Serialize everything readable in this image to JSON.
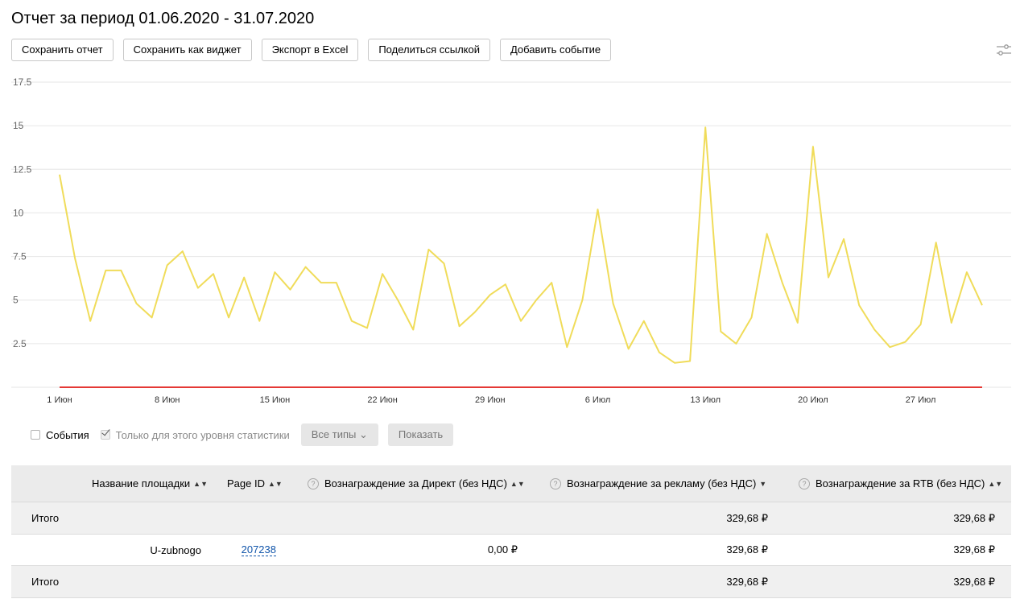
{
  "header": {
    "title": "Отчет за период 01.06.2020 - 31.07.2020"
  },
  "toolbar": {
    "save_report": "Сохранить отчет",
    "save_widget": "Сохранить как виджет",
    "export_excel": "Экспорт в Excel",
    "share_link": "Поделиться ссылкой",
    "add_event": "Добавить событие",
    "settings_icon": "sliders-icon"
  },
  "chart_data": {
    "type": "line",
    "y_ticks": [
      "17.5",
      "15",
      "12.5",
      "10",
      "7.5",
      "5",
      "2.5"
    ],
    "x_tick_labels": [
      "1 Июн",
      "8 Июн",
      "15 Июн",
      "22 Июн",
      "29 Июн",
      "6 Июл",
      "13 Июл",
      "20 Июл",
      "27 Июл"
    ],
    "ylim": [
      0,
      17.5
    ],
    "grid": true,
    "series": [
      {
        "color": "#f0dc5a",
        "x": [
          "2020-06-01",
          "2020-06-02",
          "2020-06-03",
          "2020-06-04",
          "2020-06-05",
          "2020-06-06",
          "2020-06-07",
          "2020-06-08",
          "2020-06-09",
          "2020-06-10",
          "2020-06-11",
          "2020-06-12",
          "2020-06-13",
          "2020-06-14",
          "2020-06-15",
          "2020-06-16",
          "2020-06-17",
          "2020-06-18",
          "2020-06-19",
          "2020-06-20",
          "2020-06-21",
          "2020-06-22",
          "2020-06-23",
          "2020-06-24",
          "2020-06-25",
          "2020-06-26",
          "2020-06-27",
          "2020-06-28",
          "2020-06-29",
          "2020-06-30",
          "2020-07-01",
          "2020-07-02",
          "2020-07-03",
          "2020-07-04",
          "2020-07-05",
          "2020-07-06",
          "2020-07-07",
          "2020-07-08",
          "2020-07-09",
          "2020-07-10",
          "2020-07-11",
          "2020-07-12",
          "2020-07-13",
          "2020-07-14",
          "2020-07-15",
          "2020-07-16",
          "2020-07-17",
          "2020-07-18",
          "2020-07-19",
          "2020-07-20",
          "2020-07-21",
          "2020-07-22",
          "2020-07-23",
          "2020-07-24",
          "2020-07-25",
          "2020-07-26",
          "2020-07-27",
          "2020-07-28",
          "2020-07-29",
          "2020-07-30",
          "2020-07-31"
        ],
        "values": [
          12.2,
          7.4,
          3.8,
          6.7,
          6.7,
          4.8,
          4.0,
          7.0,
          7.8,
          5.7,
          6.5,
          4.0,
          6.3,
          3.8,
          6.6,
          5.6,
          6.9,
          6.0,
          6.0,
          3.8,
          3.4,
          6.5,
          5.0,
          3.3,
          7.9,
          7.1,
          3.5,
          4.3,
          5.3,
          5.9,
          3.8,
          5.0,
          6.0,
          2.3,
          5.0,
          10.2,
          4.8,
          2.2,
          3.8,
          2.0,
          1.4,
          1.5,
          14.9,
          3.2,
          2.5,
          4.0,
          8.8,
          6.0,
          3.7,
          13.8,
          6.3,
          8.5,
          4.7,
          3.3,
          2.3,
          2.6,
          3.6,
          8.3,
          3.7,
          6.6,
          4.7
        ]
      },
      {
        "color": "#e53935",
        "x": [
          "2020-06-01",
          "2020-07-31"
        ],
        "values": [
          0,
          0
        ]
      }
    ]
  },
  "controls": {
    "events_label": "События",
    "only_level_label": "Только для этого уровня статистики",
    "all_types": "Все типы",
    "show": "Показать"
  },
  "table": {
    "headers": {
      "site_name": "Название площадки",
      "page_id": "Page ID",
      "direct_reward": "Вознаграждение за Директ (без НДС)",
      "ad_reward": "Вознаграждение за рекламу (без НДС)",
      "rtb_reward": "Вознаграждение за RTB (без НДС)"
    },
    "total_top": {
      "label": "Итого",
      "ad_reward": "329,68 ₽",
      "rtb_reward": "329,68 ₽"
    },
    "row": {
      "site_name": "U-zubnogo",
      "page_id": "207238",
      "direct_reward": "0,00 ₽",
      "ad_reward": "329,68 ₽",
      "rtb_reward": "329,68 ₽"
    },
    "total_bottom": {
      "label": "Итого",
      "ad_reward": "329,68 ₽",
      "rtb_reward": "329,68 ₽"
    }
  }
}
